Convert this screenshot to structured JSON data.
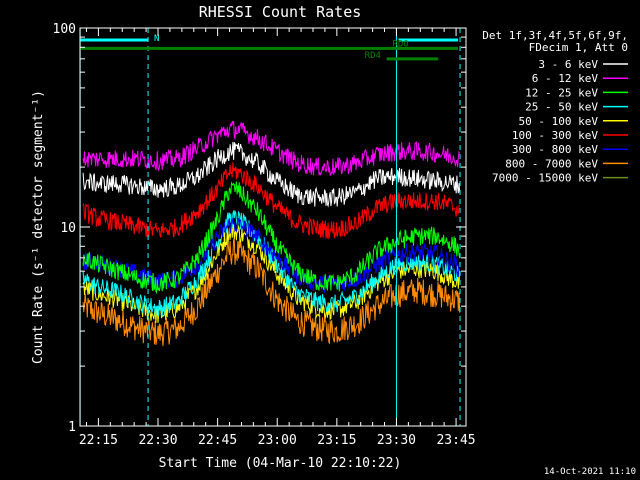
{
  "chart_data": {
    "type": "line",
    "title": "RHESSI Count Rates",
    "xlabel": "Start Time (04-Mar-10 22:10:22)",
    "ylabel": "Count Rate (s⁻¹ detector segment⁻¹)",
    "ylog": true,
    "xlim_minutes": [
      10.37,
      47.5
    ],
    "ylim": [
      1,
      100
    ],
    "xticks": [
      {
        "t": 15,
        "label": "22:15"
      },
      {
        "t": 30,
        "label": "22:30"
      },
      {
        "t": 45,
        "label": "22:45"
      },
      {
        "t": 60,
        "label": "23:00"
      },
      {
        "t": 75,
        "label": "23:15"
      },
      {
        "t": 90,
        "label": "23:30"
      },
      {
        "t": 105,
        "label": "23:45"
      }
    ],
    "yticks": [
      {
        "v": 1,
        "label": "1"
      },
      {
        "v": 10,
        "label": "10"
      },
      {
        "v": 100,
        "label": "100"
      }
    ],
    "legend": {
      "placement": "right",
      "header": [
        "Det 1f,3f,4f,5f,6f,9f,",
        "FDecim 1, Att 0"
      ]
    },
    "series": [
      {
        "name": "3 - 6 keV",
        "color": "#ffffff",
        "x": [
          11,
          15,
          20,
          25,
          30,
          35,
          40,
          45,
          48,
          50,
          55,
          60,
          65,
          70,
          75,
          80,
          85,
          90,
          95,
          100,
          105,
          106
        ],
        "y": [
          17,
          16.5,
          16.5,
          16,
          15.5,
          16,
          18,
          22,
          24,
          24,
          21,
          17,
          14.5,
          14,
          14,
          15,
          17.5,
          18,
          17.5,
          17,
          16.5,
          16
        ]
      },
      {
        "name": "6 - 12 keV",
        "color": "#ff00ff",
        "x": [
          11,
          15,
          20,
          25,
          30,
          35,
          40,
          45,
          48,
          50,
          55,
          60,
          65,
          70,
          75,
          80,
          85,
          90,
          95,
          100,
          105,
          106
        ],
        "y": [
          22,
          22,
          22,
          22,
          21.5,
          22,
          25,
          29,
          31,
          31,
          28,
          24,
          21,
          20,
          20,
          21,
          23,
          24,
          24,
          23.5,
          22.5,
          22
        ]
      },
      {
        "name": "12 - 25 keV",
        "color": "#00ff00",
        "x": [
          11,
          15,
          20,
          25,
          30,
          35,
          40,
          45,
          48,
          50,
          55,
          60,
          65,
          70,
          75,
          80,
          85,
          90,
          95,
          100,
          105,
          106
        ],
        "y": [
          7,
          6.5,
          6,
          5.5,
          5.2,
          5.5,
          7,
          11,
          15.5,
          15.5,
          12,
          8,
          6,
          5.3,
          5.2,
          5.8,
          7.5,
          8.5,
          9,
          9,
          8,
          7.5
        ]
      },
      {
        "name": "25 - 50 keV",
        "color": "#00ffff",
        "x": [
          11,
          15,
          20,
          25,
          30,
          35,
          40,
          45,
          48,
          50,
          55,
          60,
          65,
          70,
          75,
          80,
          85,
          90,
          95,
          100,
          105,
          106
        ],
        "y": [
          5.5,
          5,
          4.7,
          4.2,
          3.9,
          4.2,
          5.5,
          8.5,
          11,
          11,
          9,
          6.5,
          4.7,
          4.2,
          4.1,
          4.5,
          5.5,
          6.5,
          6.7,
          6.5,
          5.8,
          5.5
        ]
      },
      {
        "name": "50 - 100 keV",
        "color": "#ffff00",
        "x": [
          11,
          15,
          20,
          25,
          30,
          35,
          40,
          45,
          48,
          50,
          55,
          60,
          65,
          70,
          75,
          80,
          85,
          90,
          95,
          100,
          105,
          106
        ],
        "y": [
          5,
          4.6,
          4.3,
          3.9,
          3.6,
          3.9,
          5,
          7.5,
          9.5,
          9.5,
          8,
          5.8,
          4.4,
          3.9,
          3.8,
          4.2,
          5.2,
          6,
          6.2,
          6,
          5.3,
          5
        ]
      },
      {
        "name": "100 - 300 keV",
        "color": "#ff0000",
        "x": [
          11,
          15,
          20,
          25,
          30,
          35,
          40,
          45,
          48,
          50,
          55,
          60,
          65,
          70,
          75,
          80,
          85,
          90,
          95,
          100,
          105,
          106
        ],
        "y": [
          12,
          11,
          10.5,
          10,
          9.5,
          10,
          12,
          15.5,
          19,
          19,
          16,
          12.5,
          10.5,
          9.8,
          9.7,
          10.5,
          12.5,
          13.5,
          13.5,
          13.5,
          12.5,
          12
        ]
      },
      {
        "name": "300 - 800 keV",
        "color": "#0000ff",
        "x": [
          11,
          15,
          20,
          25,
          30,
          35,
          40,
          45,
          48,
          50,
          55,
          60,
          65,
          70,
          75,
          80,
          85,
          90,
          95,
          100,
          105,
          106
        ],
        "y": [
          6.8,
          6.6,
          6.2,
          5.8,
          5.3,
          5.5,
          6.5,
          9,
          10.3,
          10.3,
          9,
          7,
          5.7,
          5.2,
          5.2,
          5.5,
          6.5,
          7.3,
          7.5,
          7.3,
          6.5,
          6
        ]
      },
      {
        "name": "800 - 7000 keV",
        "color": "#ff8c00",
        "x": [
          11,
          15,
          20,
          25,
          30,
          35,
          40,
          45,
          48,
          50,
          55,
          60,
          65,
          70,
          75,
          80,
          85,
          90,
          95,
          100,
          105,
          106
        ],
        "y": [
          4,
          3.7,
          3.4,
          3.1,
          2.9,
          3.1,
          4,
          6,
          7.5,
          7.5,
          6.2,
          4.3,
          3.4,
          3.1,
          3,
          3.3,
          4,
          4.6,
          4.8,
          4.6,
          4.3,
          4.2
        ]
      },
      {
        "name": "7000 - 15000 keV",
        "color": "#6b8e23",
        "x": [],
        "y": []
      }
    ],
    "annotations": {
      "attenuator_bars": [
        {
          "x0": 10.5,
          "x1": 27.5,
          "y": 87,
          "color": "#00ffff"
        },
        {
          "x0": 90.5,
          "x1": 105.5,
          "y": 87,
          "color": "#00ffff"
        }
      ],
      "flags": [
        {
          "label": "N",
          "label_t": 29,
          "color": "#00ffff"
        },
        {
          "label": "RD0",
          "label_t": 89,
          "color": "#008000"
        },
        {
          "label": "RD4",
          "label_t": 82,
          "color": "#008000"
        }
      ],
      "flag_bars": [
        {
          "x0": 10.5,
          "x1": 105.5,
          "y": 79,
          "color": "#008000"
        },
        {
          "x0": 87.5,
          "x1": 100.5,
          "y": 70,
          "color": "#008000"
        }
      ],
      "vlines_solid": [
        10.4,
        90
      ],
      "vlines_dashed": [
        27.5,
        106
      ],
      "vline_color": "#00ffff"
    },
    "timestamp": "14-Oct-2021 11:10"
  }
}
